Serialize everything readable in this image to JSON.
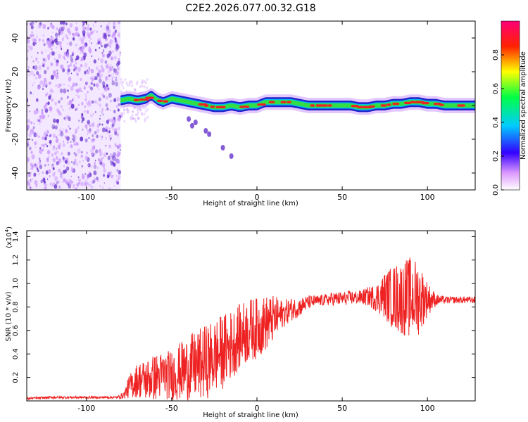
{
  "title": "C2E2.2026.077.00.32.G18",
  "colors": {
    "spectrogram_low": "#cc99ff",
    "spectrogram_mid": "#6633cc",
    "band_outer": "#2222cc",
    "band_core": "#33dd44",
    "band_peak": "#ee2222",
    "snr_line": "#ee2222"
  },
  "chart_data": [
    {
      "type": "heatmap",
      "xlabel": "Height of straight line (km)",
      "ylabel": "Frequency (Hz)",
      "xlim": [
        -135,
        128
      ],
      "ylim": [
        -50,
        50
      ],
      "x_ticks": [
        -100,
        -50,
        0,
        50,
        100
      ],
      "x_tick_labels": [
        "-100",
        "-50",
        "0",
        "50",
        "100"
      ],
      "y_ticks": [
        -40,
        -20,
        0,
        20,
        40
      ],
      "y_tick_labels": [
        "-40",
        "-20",
        "0",
        "20",
        "40"
      ],
      "noise_region_km": [
        -135,
        -80
      ],
      "ridge": {
        "x": [
          -80,
          -75,
          -70,
          -65,
          -62,
          -58,
          -55,
          -50,
          -45,
          -40,
          -35,
          -30,
          -25,
          -20,
          -15,
          -10,
          -5,
          0,
          5,
          10,
          15,
          20,
          25,
          30,
          35,
          40,
          45,
          50,
          55,
          60,
          65,
          70,
          75,
          80,
          85,
          90,
          95,
          100,
          105,
          110,
          115,
          120,
          128
        ],
        "y": [
          3,
          4,
          3,
          4,
          6,
          3,
          2,
          4,
          3,
          2,
          1,
          0,
          -1,
          -1,
          0,
          -1,
          0,
          0,
          2,
          2,
          2,
          2,
          1,
          0,
          0,
          0,
          0,
          0,
          0,
          -1,
          -1,
          0,
          0,
          1,
          1,
          2,
          2,
          1,
          1,
          0,
          0,
          0,
          0
        ]
      },
      "scatter_blobs": {
        "x": [
          -40,
          -38,
          -36,
          -30,
          -28,
          -20,
          -15
        ],
        "y": [
          -8,
          -12,
          -10,
          -15,
          -17,
          -25,
          -30
        ]
      },
      "colorbar": {
        "label": "Normalized spectral amplitude",
        "range": [
          0,
          1
        ],
        "ticks": [
          0.0,
          0.2,
          0.4,
          0.6,
          0.8
        ],
        "tick_labels": [
          "0.0",
          "0.2",
          "0.4",
          "0.6",
          "0.8"
        ]
      }
    },
    {
      "type": "line",
      "xlabel": "Height of straight line (km)",
      "ylabel": "SNR (10 * v/v)",
      "y_multiplier": "(x10",
      "y_multiplier_exp": "4",
      "y_multiplier_close": ")",
      "xlim": [
        -135,
        128
      ],
      "ylim": [
        0,
        1.45
      ],
      "x_ticks": [
        -100,
        -50,
        0,
        50,
        100
      ],
      "x_tick_labels": [
        "-100",
        "-50",
        "0",
        "50",
        "100"
      ],
      "y_ticks": [
        0.2,
        0.4,
        0.6,
        0.8,
        1.0,
        1.2,
        1.4
      ],
      "y_tick_labels": [
        "0.2",
        "0.4",
        "0.6",
        "0.8",
        "1.0",
        "1.2",
        "1.4"
      ],
      "series": [
        {
          "name": "SNR",
          "x": [
            -135,
            -120,
            -110,
            -100,
            -90,
            -82,
            -78,
            -75,
            -70,
            -65,
            -60,
            -55,
            -50,
            -45,
            -40,
            -35,
            -30,
            -25,
            -20,
            -15,
            -10,
            -5,
            0,
            5,
            10,
            15,
            20,
            25,
            30,
            35,
            40,
            45,
            50,
            55,
            60,
            65,
            70,
            75,
            80,
            85,
            90,
            95,
            100,
            105,
            110,
            115,
            120,
            128
          ],
          "y": [
            0.02,
            0.03,
            0.03,
            0.03,
            0.03,
            0.03,
            0.05,
            0.12,
            0.18,
            0.18,
            0.2,
            0.22,
            0.22,
            0.25,
            0.28,
            0.3,
            0.33,
            0.38,
            0.42,
            0.48,
            0.55,
            0.6,
            0.62,
            0.66,
            0.7,
            0.74,
            0.78,
            0.8,
            0.84,
            0.85,
            0.86,
            0.87,
            0.87,
            0.88,
            0.88,
            0.89,
            0.88,
            0.9,
            0.88,
            0.88,
            0.88,
            0.88,
            0.87,
            0.86,
            0.86,
            0.86,
            0.86,
            0.86
          ],
          "amplitude": [
            0.01,
            0.01,
            0.01,
            0.01,
            0.01,
            0.01,
            0.03,
            0.1,
            0.15,
            0.18,
            0.2,
            0.2,
            0.22,
            0.25,
            0.28,
            0.3,
            0.32,
            0.32,
            0.32,
            0.3,
            0.28,
            0.28,
            0.26,
            0.24,
            0.2,
            0.12,
            0.1,
            0.08,
            0.06,
            0.05,
            0.05,
            0.06,
            0.06,
            0.06,
            0.06,
            0.08,
            0.12,
            0.2,
            0.28,
            0.32,
            0.35,
            0.32,
            0.15,
            0.05,
            0.03,
            0.03,
            0.03,
            0.03
          ]
        }
      ]
    }
  ]
}
